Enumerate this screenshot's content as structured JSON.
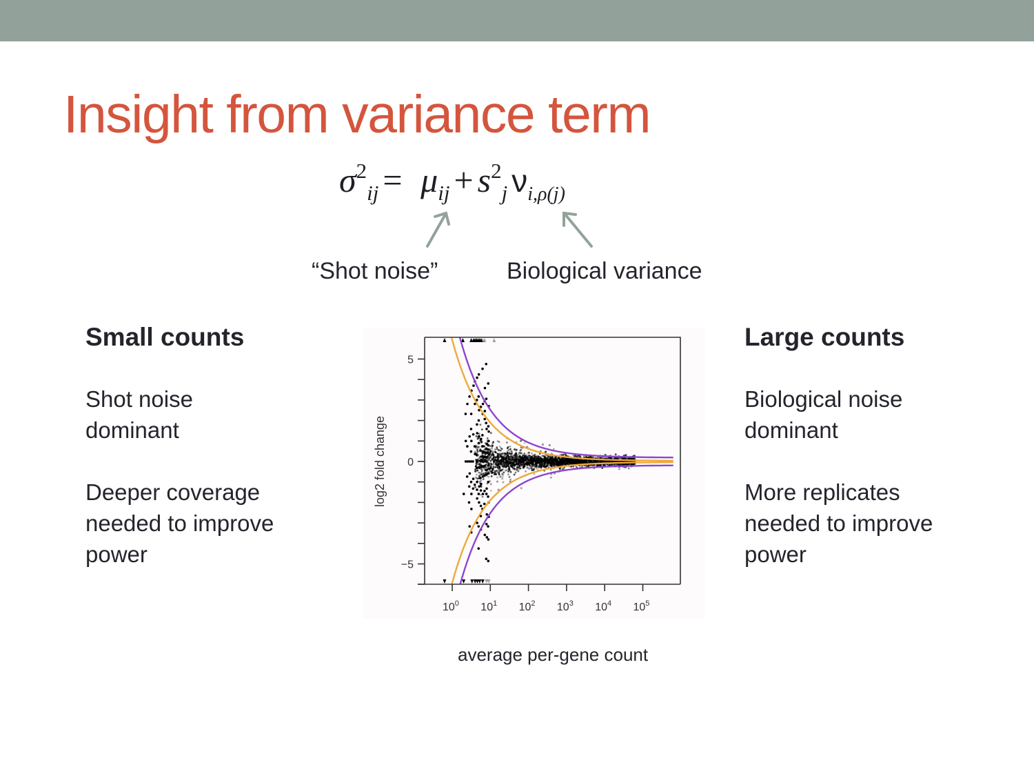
{
  "colors": {
    "topbar": "#92a29a",
    "title": "#d4553d",
    "text": "#24242c",
    "arrow": "#92a29a",
    "orange_curve": "#efa93a",
    "purple_curve": "#8b45cf",
    "points": "#000000"
  },
  "slide": {
    "title": "Insight from variance term",
    "equation": {
      "lhs": "σ",
      "lhs_sup": "2",
      "lhs_sub": "ij",
      "equals": "=",
      "term1": "μ",
      "term1_sub": "ij",
      "plus": "+",
      "term2": "s",
      "term2_sup": "2",
      "term2_sub": "j",
      "term3": "ν",
      "term3_sub": "i,ρ(j)"
    },
    "annotations": {
      "shot_noise": "“Shot noise”",
      "biological_variance": "Biological variance"
    },
    "left_column": {
      "heading": "Small counts",
      "paragraphs": [
        "Shot noise\ndominant",
        "Deeper coverage\nneeded to improve\npower"
      ]
    },
    "right_column": {
      "heading": "Large counts",
      "paragraphs": [
        "Biological noise\ndominant",
        "More replicates\nneeded to improve\npower"
      ]
    },
    "x_caption": "average per-gene count"
  },
  "chart_data": {
    "type": "scatter",
    "title": "",
    "xlabel": "average per-gene count",
    "ylabel": "log2 fold change",
    "x_scale": "log10",
    "xlim_log10": [
      -0.75,
      5.75
    ],
    "ylim": [
      -6,
      6
    ],
    "x_ticks": [
      {
        "v": 0,
        "label": "10",
        "exp": "0"
      },
      {
        "v": 1,
        "label": "10",
        "exp": "1"
      },
      {
        "v": 2,
        "label": "10",
        "exp": "2"
      },
      {
        "v": 3,
        "label": "10",
        "exp": "3"
      },
      {
        "v": 4,
        "label": "10",
        "exp": "4"
      },
      {
        "v": 5,
        "label": "10",
        "exp": "5"
      }
    ],
    "y_ticks_major": [
      {
        "v": 5,
        "label": "5"
      },
      {
        "v": 0,
        "label": "0"
      },
      {
        "v": -5,
        "label": "−5"
      }
    ],
    "y_ticks_minor": [
      4,
      3,
      2,
      1,
      -1,
      -2,
      -3,
      -4
    ],
    "grid": false,
    "legend": null,
    "series": [
      {
        "name": "shot-noise bound (orange)",
        "kind": "curve",
        "description": "±k/sqrt(mean), Poisson only",
        "k": 2.0,
        "floor": 0.03
      },
      {
        "name": "total-variance bound (purple)",
        "kind": "curve",
        "description": "±k*sqrt(1/mean + b), Poisson + biological",
        "k": 2.1,
        "floor_sq": 0.007,
        "x_shift": 0.42
      },
      {
        "name": "genes",
        "kind": "points",
        "description": "log2 fold change vs mean count; discrete fan at low counts, narrowing band at high counts, clipped points at ±6 shown as triangles",
        "n_points": 2600,
        "x_range_log10": [
          -0.2,
          4.9
        ],
        "clipped_top_x_log10": [
          -0.2,
          0.28,
          0.5,
          0.56,
          0.6,
          0.64,
          0.68,
          0.72,
          0.76,
          0.8,
          0.85,
          1.1
        ],
        "clipped_bottom_x_log10": [
          -0.2,
          0.3,
          0.52,
          0.6,
          0.66,
          0.72,
          0.8,
          0.9,
          0.96
        ]
      }
    ]
  }
}
